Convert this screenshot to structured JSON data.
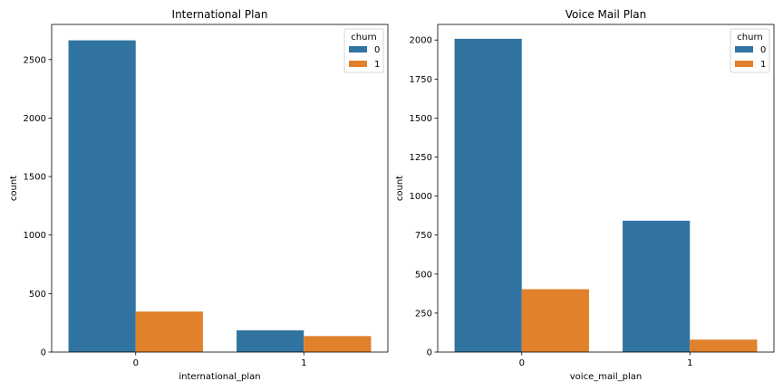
{
  "chart_data": [
    {
      "type": "bar",
      "title": "International Plan",
      "xlabel": "international_plan",
      "ylabel": "count",
      "categories": [
        "0",
        "1"
      ],
      "ylim": [
        0,
        2800
      ],
      "yticks": [
        0,
        500,
        1000,
        1500,
        2000,
        2500
      ],
      "grid": false,
      "legend": {
        "title": "churn",
        "position": "top-right"
      },
      "series": [
        {
          "name": "0",
          "color": "#3274a1",
          "values": [
            2664,
            186
          ]
        },
        {
          "name": "1",
          "color": "#e1812c",
          "values": [
            346,
            137
          ]
        }
      ]
    },
    {
      "type": "bar",
      "title": "Voice Mail Plan",
      "xlabel": "voice_mail_plan",
      "ylabel": "count",
      "categories": [
        "0",
        "1"
      ],
      "ylim": [
        0,
        2100
      ],
      "yticks": [
        0,
        250,
        500,
        750,
        1000,
        1250,
        1500,
        1750,
        2000
      ],
      "grid": false,
      "legend": {
        "title": "churn",
        "position": "top-right"
      },
      "series": [
        {
          "name": "0",
          "color": "#3274a1",
          "values": [
            2008,
            842
          ]
        },
        {
          "name": "1",
          "color": "#e1812c",
          "values": [
            403,
            80
          ]
        }
      ]
    }
  ]
}
